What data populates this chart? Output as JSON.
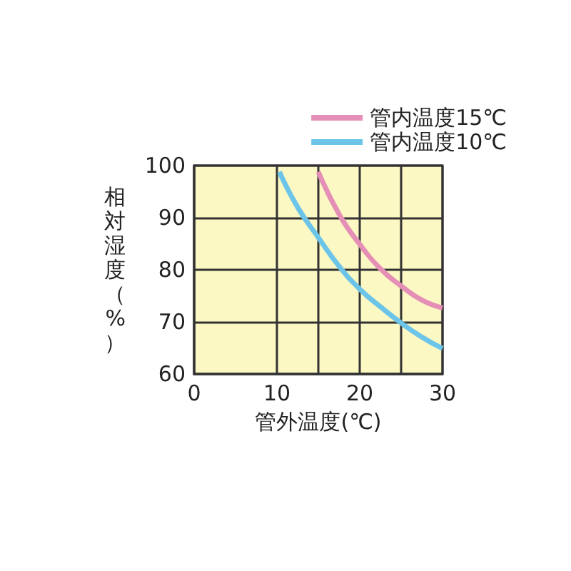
{
  "chart_data": {
    "type": "line",
    "xlabel": "管外温度(℃)",
    "ylabel": "相対湿度（%）",
    "xlim": [
      0,
      30
    ],
    "xticks": [
      0,
      10,
      {
        "value": 15,
        "label": null
      },
      20,
      {
        "value": 25,
        "label": null
      },
      30
    ],
    "ylim": [
      60,
      100
    ],
    "yticks": [
      60,
      70,
      80,
      90,
      100
    ],
    "grid": true,
    "legend": "top right",
    "marker": "none",
    "line_style": "solid",
    "series": [
      {
        "name": "管内温度15℃",
        "color": "#e58fb6",
        "x": [
          15,
          17.5,
          20,
          22.5,
          25,
          27.5,
          30
        ],
        "values": [
          98.8,
          90.7,
          84.9,
          80.2,
          76.9,
          74.2,
          72.7
        ]
      },
      {
        "name": "管内温度10℃",
        "color": "#6cc5e8",
        "x": [
          10.3,
          12.5,
          15,
          17.5,
          20,
          22.5,
          25,
          27.5,
          30
        ],
        "values": [
          98.8,
          92,
          86.2,
          80.7,
          76.3,
          72.9,
          69.8,
          67.1,
          64.9
        ]
      }
    ]
  }
}
